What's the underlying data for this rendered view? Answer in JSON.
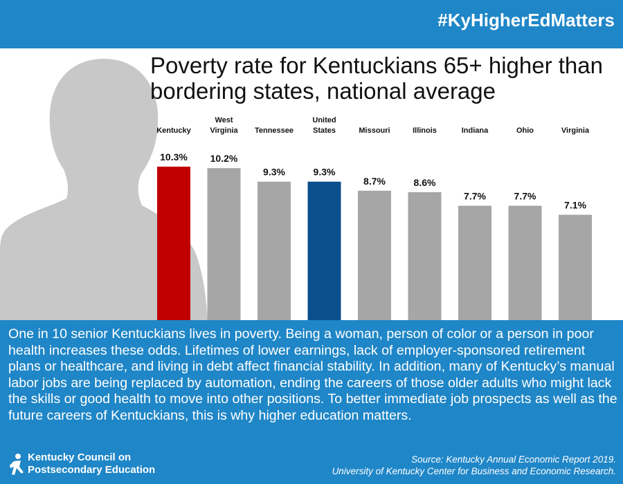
{
  "header": {
    "hashtag": "#KyHigherEdMatters"
  },
  "colors": {
    "band": "#1f86c7",
    "kentucky": "#c00000",
    "united_states": "#0b4f8c",
    "other": "#a6a6a6"
  },
  "chart_data": {
    "type": "bar",
    "title": "Poverty rate for Kentuckians 65+ higher than bordering states, national average",
    "categories": [
      [
        "Kentucky"
      ],
      [
        "West",
        "Virginia"
      ],
      [
        "Tennessee"
      ],
      [
        "United",
        "States"
      ],
      [
        "Missouri"
      ],
      [
        "Illinois"
      ],
      [
        "Indiana"
      ],
      [
        "Ohio"
      ],
      [
        "Virginia"
      ]
    ],
    "values": [
      10.3,
      10.2,
      9.3,
      9.3,
      8.7,
      8.6,
      7.7,
      7.7,
      7.1
    ],
    "value_labels": [
      "10.3%",
      "10.2%",
      "9.3%",
      "9.3%",
      "8.7%",
      "8.6%",
      "7.7%",
      "7.7%",
      "7.1%"
    ],
    "bar_colors": [
      "#c00000",
      "#a6a6a6",
      "#a6a6a6",
      "#0b4f8c",
      "#a6a6a6",
      "#a6a6a6",
      "#a6a6a6",
      "#a6a6a6",
      "#a6a6a6"
    ],
    "ylim": [
      0,
      10.3
    ],
    "grid": false,
    "legend": "none"
  },
  "body": {
    "paragraph": "One in 10 senior Kentuckians lives in poverty. Being a woman, person of color or a person in poor health increases these odds. Lifetimes of lower earnings, lack of employer-sponsored retirement plans or healthcare, and living in debt affect financial stability. In addition, many of Kentucky’s manual labor jobs are being replaced by automation, ending the careers of those older adults who might lack the skills or good health to move into other positions. To better immediate  job prospects as well as the future careers of Kentuckians, this is why higher education matters."
  },
  "footer": {
    "logo_line1": "Kentucky Council on",
    "logo_line2": "Postsecondary Education",
    "source_line1": "Source:  Kentucky Annual Economic Report 2019.",
    "source_line2": "University of Kentucky Center for Business and Economic Research."
  }
}
